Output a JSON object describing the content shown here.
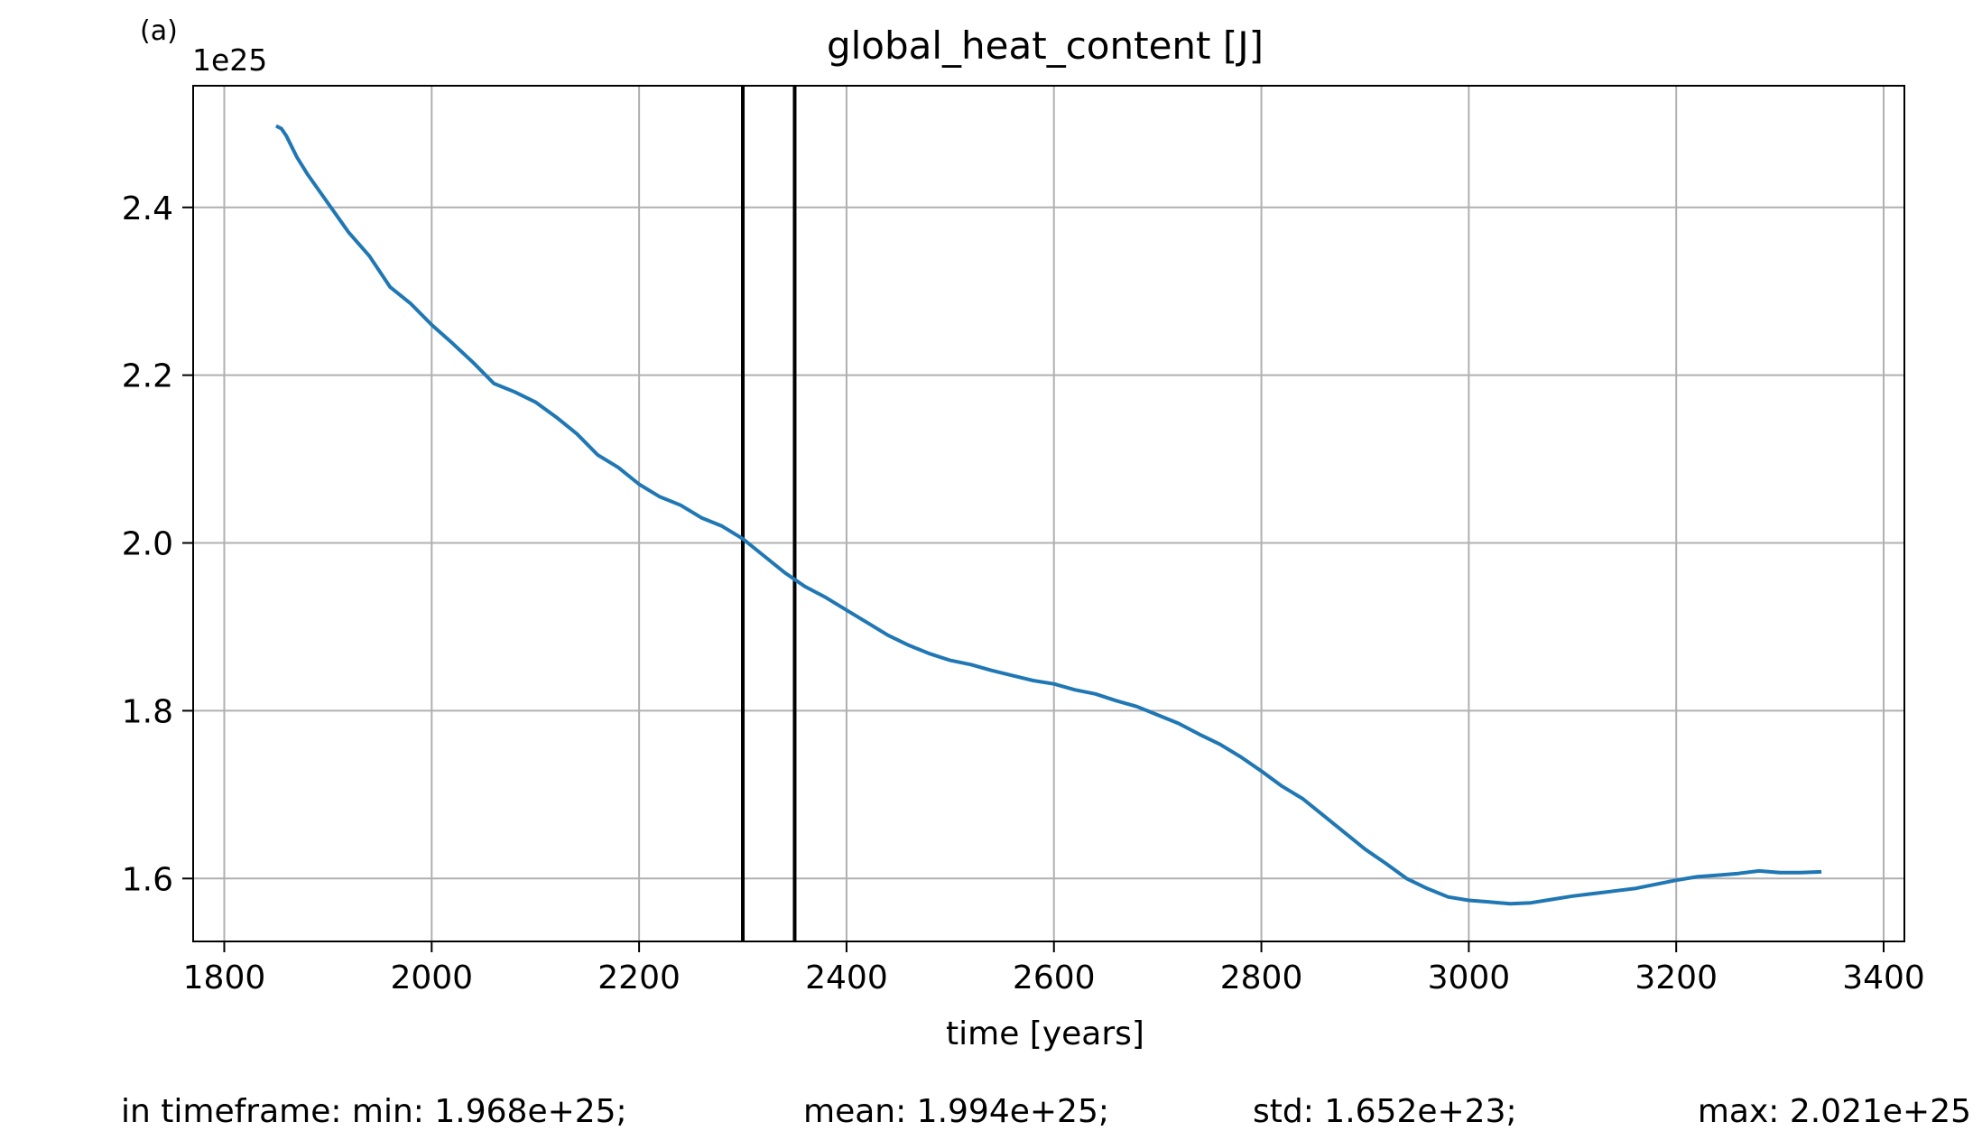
{
  "panel_label": "(a)",
  "chart_data": {
    "type": "line",
    "title": "global_heat_content [J]",
    "xlabel": "time [years]",
    "ylabel": "",
    "y_multiplier_label": "1e25",
    "y_scale_factor": 1e+25,
    "xlim": [
      1770,
      3420
    ],
    "ylim": [
      1.525,
      2.545
    ],
    "xticks": [
      1800,
      2000,
      2200,
      2400,
      2600,
      2800,
      3000,
      3200,
      3400
    ],
    "xtick_labels": [
      "1800",
      "2000",
      "2200",
      "2400",
      "2600",
      "2800",
      "3000",
      "3200",
      "3400"
    ],
    "yticks": [
      1.6,
      1.8,
      2.0,
      2.2,
      2.4
    ],
    "ytick_labels": [
      "1.6",
      "1.8",
      "2.0",
      "2.2",
      "2.4"
    ],
    "grid": true,
    "line_color": "#1f77b4",
    "vertical_lines": [
      2300,
      2350
    ],
    "vertical_line_color": "#000000",
    "series": [
      {
        "x": [
          1850,
          1855,
          1860,
          1870,
          1880,
          1900,
          1920,
          1940,
          1960,
          1980,
          2000,
          2020,
          2040,
          2060,
          2080,
          2100,
          2120,
          2140,
          2160,
          2180,
          2200,
          2220,
          2240,
          2260,
          2280,
          2300,
          2320,
          2340,
          2360,
          2380,
          2400,
          2420,
          2440,
          2460,
          2480,
          2500,
          2520,
          2540,
          2560,
          2580,
          2600,
          2620,
          2640,
          2660,
          2680,
          2700,
          2720,
          2740,
          2760,
          2780,
          2800,
          2820,
          2840,
          2860,
          2880,
          2900,
          2920,
          2940,
          2960,
          2980,
          3000,
          3020,
          3040,
          3060,
          3080,
          3100,
          3120,
          3140,
          3160,
          3180,
          3200,
          3220,
          3240,
          3260,
          3280,
          3300,
          3320,
          3340
        ],
        "y": [
          2.497,
          2.494,
          2.485,
          2.46,
          2.44,
          2.405,
          2.37,
          2.342,
          2.305,
          2.285,
          2.26,
          2.238,
          2.215,
          2.19,
          2.18,
          2.168,
          2.15,
          2.13,
          2.105,
          2.09,
          2.07,
          2.055,
          2.045,
          2.03,
          2.02,
          2.005,
          1.985,
          1.965,
          1.948,
          1.935,
          1.92,
          1.905,
          1.89,
          1.878,
          1.868,
          1.86,
          1.855,
          1.848,
          1.842,
          1.836,
          1.832,
          1.825,
          1.82,
          1.812,
          1.805,
          1.795,
          1.785,
          1.772,
          1.76,
          1.745,
          1.728,
          1.71,
          1.695,
          1.675,
          1.655,
          1.635,
          1.618,
          1.6,
          1.588,
          1.578,
          1.574,
          1.572,
          1.57,
          1.571,
          1.575,
          1.579,
          1.582,
          1.585,
          1.588,
          1.593,
          1.598,
          1.602,
          1.604,
          1.606,
          1.609,
          1.607,
          1.607,
          1.608
        ]
      }
    ]
  },
  "stats": {
    "prefix": "in timeframe: min: 1.968e+25;",
    "mean": "mean: 1.994e+25;",
    "std": "std: 1.652e+23;",
    "max": "max: 2.021e+25"
  }
}
